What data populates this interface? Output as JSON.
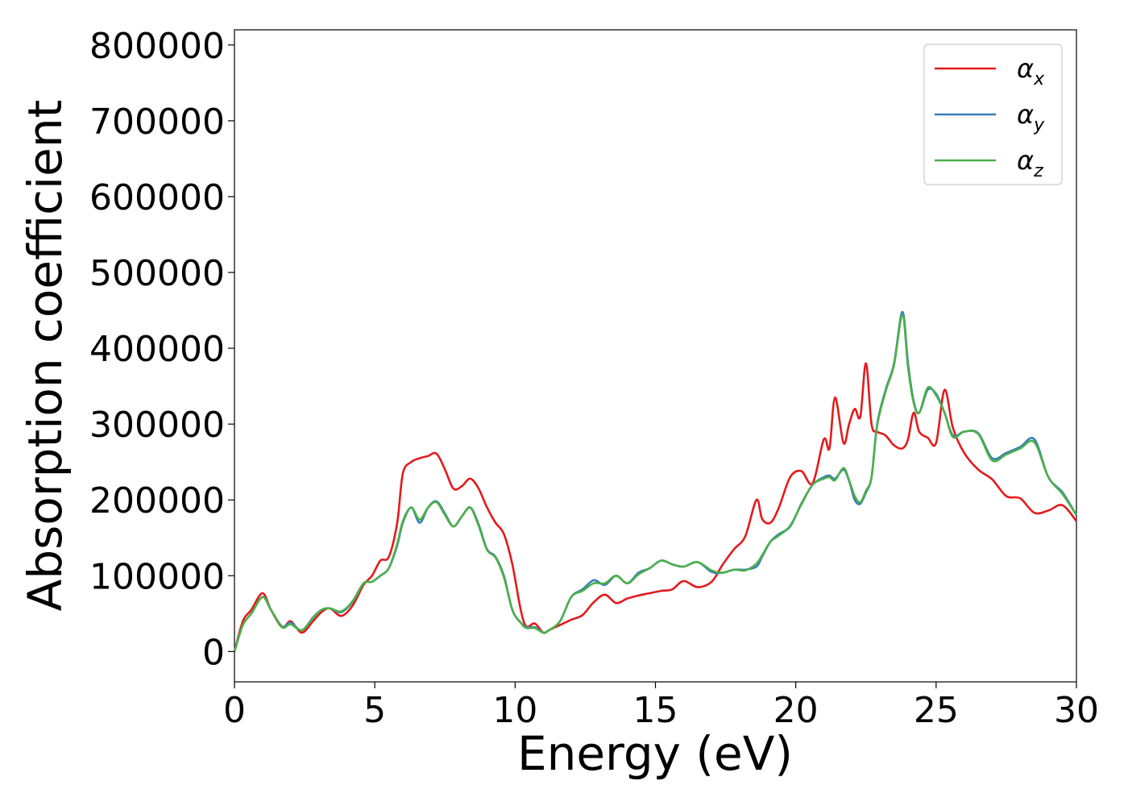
{
  "chart_data": {
    "type": "line",
    "xlabel": "Energy (eV)",
    "ylabel": "Absorption coefficient",
    "xlim": [
      0,
      30
    ],
    "ylim": [
      -40000,
      820000
    ],
    "xticks": [
      0,
      5,
      10,
      15,
      20,
      25,
      30
    ],
    "yticks": [
      0,
      100000,
      200000,
      300000,
      400000,
      500000,
      600000,
      700000,
      800000
    ],
    "grid": false,
    "legend": {
      "placement": "top-right",
      "entries": [
        {
          "base": "α",
          "sub": "x",
          "color": "#e41a1c"
        },
        {
          "base": "α",
          "sub": "y",
          "color": "#377eb8"
        },
        {
          "base": "α",
          "sub": "z",
          "color": "#4daf4a"
        }
      ]
    },
    "series": [
      {
        "color": "#e41a1c",
        "x": [
          0,
          0.3,
          0.6,
          1.0,
          1.3,
          1.7,
          2.0,
          2.4,
          2.8,
          3.1,
          3.4,
          3.8,
          4.2,
          4.6,
          4.9,
          5.2,
          5.5,
          5.8,
          6.0,
          6.3,
          6.6,
          6.9,
          7.2,
          7.5,
          7.8,
          8.1,
          8.4,
          8.7,
          9.0,
          9.3,
          9.6,
          9.9,
          10.2,
          10.4,
          10.7,
          11.0,
          11.2,
          11.6,
          12.0,
          12.4,
          12.8,
          13.2,
          13.6,
          14.0,
          14.4,
          14.8,
          15.2,
          15.6,
          16.0,
          16.5,
          17.0,
          17.4,
          17.8,
          18.2,
          18.6,
          18.8,
          19.1,
          19.4,
          19.8,
          20.2,
          20.6,
          21.0,
          21.2,
          21.4,
          21.7,
          21.9,
          22.1,
          22.3,
          22.5,
          22.7,
          22.9,
          23.2,
          23.5,
          23.8,
          24.0,
          24.2,
          24.4,
          24.7,
          25.0,
          25.3,
          25.6,
          26.0,
          26.5,
          27.0,
          27.5,
          28.0,
          28.5,
          29.0,
          29.5,
          30.0
        ],
        "y": [
          0,
          40000,
          55000,
          77000,
          55000,
          32000,
          40000,
          25000,
          40000,
          52000,
          57000,
          47000,
          60000,
          88000,
          100000,
          120000,
          125000,
          170000,
          235000,
          250000,
          255000,
          258000,
          261000,
          240000,
          215000,
          218000,
          228000,
          215000,
          190000,
          170000,
          155000,
          115000,
          55000,
          33000,
          37000,
          25000,
          28000,
          35000,
          42000,
          48000,
          65000,
          75000,
          64000,
          70000,
          74000,
          77000,
          80000,
          82000,
          93000,
          85000,
          92000,
          115000,
          135000,
          152000,
          200000,
          175000,
          170000,
          190000,
          230000,
          238000,
          222000,
          280000,
          268000,
          335000,
          275000,
          300000,
          320000,
          310000,
          380000,
          300000,
          290000,
          285000,
          272000,
          268000,
          280000,
          315000,
          290000,
          282000,
          275000,
          345000,
          295000,
          262000,
          240000,
          227000,
          205000,
          202000,
          183000,
          186000,
          193000,
          172000
        ]
      },
      {
        "color": "#377eb8",
        "x": [
          0,
          0.3,
          0.6,
          1.0,
          1.3,
          1.7,
          2.0,
          2.4,
          2.8,
          3.1,
          3.4,
          3.8,
          4.2,
          4.6,
          4.9,
          5.2,
          5.5,
          5.8,
          6.0,
          6.3,
          6.6,
          6.9,
          7.2,
          7.5,
          7.8,
          8.1,
          8.4,
          8.7,
          9.0,
          9.3,
          9.6,
          9.9,
          10.2,
          10.4,
          10.7,
          11.0,
          11.2,
          11.6,
          12.0,
          12.4,
          12.8,
          13.2,
          13.6,
          14.0,
          14.4,
          14.8,
          15.2,
          15.6,
          16.0,
          16.5,
          17.0,
          17.4,
          17.8,
          18.2,
          18.6,
          18.8,
          19.1,
          19.4,
          19.8,
          20.2,
          20.6,
          21.0,
          21.2,
          21.4,
          21.7,
          21.9,
          22.1,
          22.3,
          22.5,
          22.7,
          22.9,
          23.2,
          23.5,
          23.8,
          24.0,
          24.2,
          24.4,
          24.7,
          25.0,
          25.3,
          25.6,
          26.0,
          26.5,
          27.0,
          27.5,
          28.0,
          28.5,
          29.0,
          29.5,
          30.0
        ],
        "y": [
          0,
          35000,
          50000,
          72000,
          55000,
          33000,
          38000,
          28000,
          45000,
          55000,
          57000,
          52000,
          65000,
          90000,
          92000,
          100000,
          110000,
          140000,
          170000,
          190000,
          170000,
          190000,
          198000,
          182000,
          165000,
          178000,
          190000,
          168000,
          135000,
          125000,
          100000,
          55000,
          38000,
          32000,
          32000,
          25000,
          28000,
          40000,
          72000,
          82000,
          94000,
          88000,
          100000,
          90000,
          104000,
          110000,
          120000,
          115000,
          112000,
          118000,
          105000,
          104000,
          108000,
          108000,
          112000,
          125000,
          145000,
          155000,
          165000,
          195000,
          220000,
          230000,
          232000,
          228000,
          240000,
          225000,
          200000,
          195000,
          210000,
          230000,
          300000,
          345000,
          380000,
          448000,
          380000,
          330000,
          315000,
          345000,
          340000,
          315000,
          285000,
          290000,
          288000,
          255000,
          262000,
          270000,
          280000,
          230000,
          210000,
          180000
        ]
      },
      {
        "color": "#4daf4a",
        "x": [
          0,
          0.3,
          0.6,
          1.0,
          1.3,
          1.7,
          2.0,
          2.4,
          2.8,
          3.1,
          3.4,
          3.8,
          4.2,
          4.6,
          4.9,
          5.2,
          5.5,
          5.8,
          6.0,
          6.3,
          6.6,
          6.9,
          7.2,
          7.5,
          7.8,
          8.1,
          8.4,
          8.7,
          9.0,
          9.3,
          9.6,
          9.9,
          10.2,
          10.4,
          10.7,
          11.0,
          11.2,
          11.6,
          12.0,
          12.4,
          12.8,
          13.2,
          13.6,
          14.0,
          14.4,
          14.8,
          15.2,
          15.6,
          16.0,
          16.5,
          17.0,
          17.4,
          17.8,
          18.2,
          18.6,
          18.8,
          19.1,
          19.4,
          19.8,
          20.2,
          20.6,
          21.0,
          21.2,
          21.4,
          21.7,
          21.9,
          22.1,
          22.3,
          22.5,
          22.7,
          22.9,
          23.2,
          23.5,
          23.8,
          24.0,
          24.2,
          24.4,
          24.7,
          25.0,
          25.3,
          25.6,
          26.0,
          26.5,
          27.0,
          27.5,
          28.0,
          28.5,
          29.0,
          29.5,
          30.0
        ],
        "y": [
          0,
          35000,
          50000,
          72000,
          55000,
          32000,
          36000,
          28000,
          44000,
          55000,
          57000,
          53000,
          66000,
          90000,
          92000,
          100000,
          110000,
          142000,
          172000,
          190000,
          174000,
          190000,
          197000,
          180000,
          165000,
          178000,
          190000,
          166000,
          134000,
          124000,
          98000,
          55000,
          38000,
          31000,
          31000,
          25000,
          28000,
          40000,
          72000,
          80000,
          90000,
          90000,
          100000,
          90000,
          102000,
          110000,
          120000,
          115000,
          112000,
          118000,
          107000,
          104000,
          108000,
          107000,
          116000,
          127000,
          145000,
          153000,
          166000,
          194000,
          220000,
          228000,
          230000,
          226000,
          242000,
          226000,
          205000,
          197000,
          212000,
          230000,
          298000,
          343000,
          378000,
          444000,
          375000,
          328000,
          315000,
          348000,
          338000,
          315000,
          283000,
          290000,
          287000,
          252000,
          260000,
          268000,
          276000,
          230000,
          208000,
          180000
        ]
      }
    ]
  }
}
